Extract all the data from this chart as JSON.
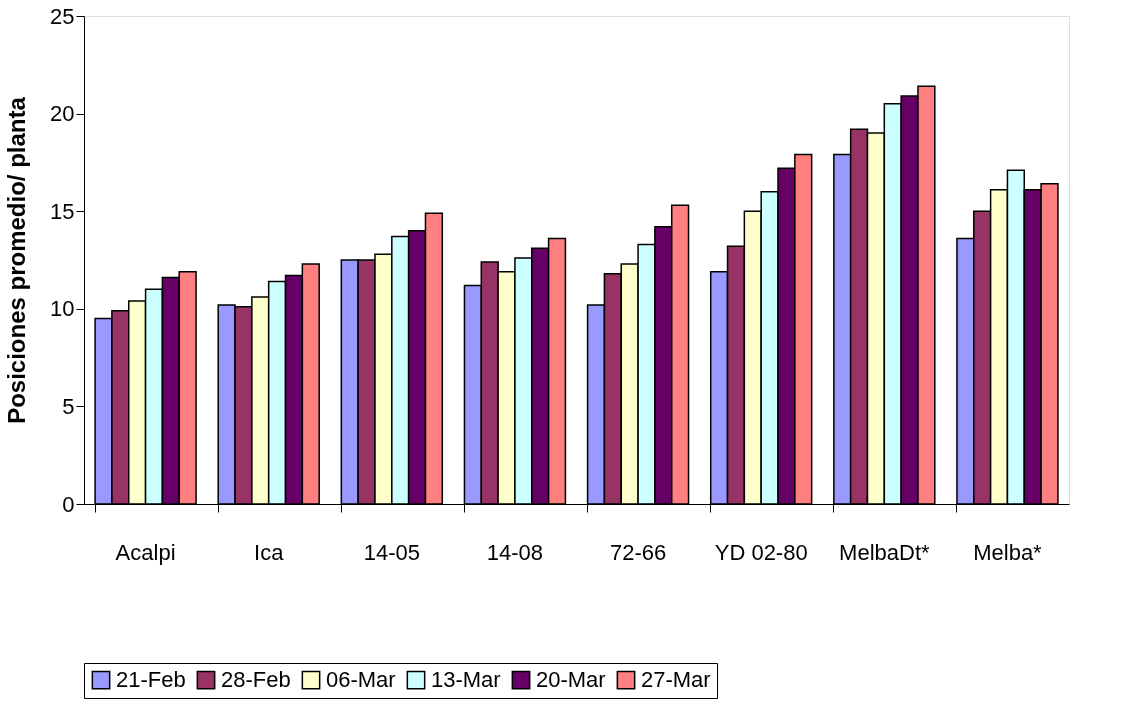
{
  "chart_data": {
    "type": "bar",
    "ylabel": "Posiciones promedio/ planta",
    "categories": [
      "Acalpi",
      "Ica",
      "14-05",
      "14-08",
      "72-66",
      "YD 02-80",
      "MelbaDt*",
      "Melba*"
    ],
    "series": [
      {
        "name": "21-Feb",
        "color": "#9999ff",
        "values": [
          9.5,
          10.2,
          12.5,
          11.2,
          10.2,
          11.9,
          17.9,
          13.6
        ]
      },
      {
        "name": "28-Feb",
        "color": "#993366",
        "values": [
          9.9,
          10.1,
          12.5,
          12.4,
          11.8,
          13.2,
          19.2,
          15.0
        ]
      },
      {
        "name": "06-Mar",
        "color": "#ffffcc",
        "values": [
          10.4,
          10.6,
          12.8,
          11.9,
          12.3,
          15.0,
          19.0,
          16.1
        ]
      },
      {
        "name": "13-Mar",
        "color": "#ccffff",
        "values": [
          11.0,
          11.4,
          13.7,
          12.6,
          13.3,
          16.0,
          20.5,
          17.1
        ]
      },
      {
        "name": "20-Mar",
        "color": "#660066",
        "values": [
          11.6,
          11.7,
          14.0,
          13.1,
          14.2,
          17.2,
          20.9,
          16.1
        ]
      },
      {
        "name": "27-Mar",
        "color": "#ff8080",
        "values": [
          11.9,
          12.3,
          14.9,
          13.6,
          15.3,
          17.9,
          21.4,
          16.4
        ]
      }
    ],
    "ylim": [
      0,
      25
    ],
    "yticks": [
      0,
      5,
      10,
      15,
      20,
      25
    ],
    "grid": false,
    "legend": "bottom"
  }
}
